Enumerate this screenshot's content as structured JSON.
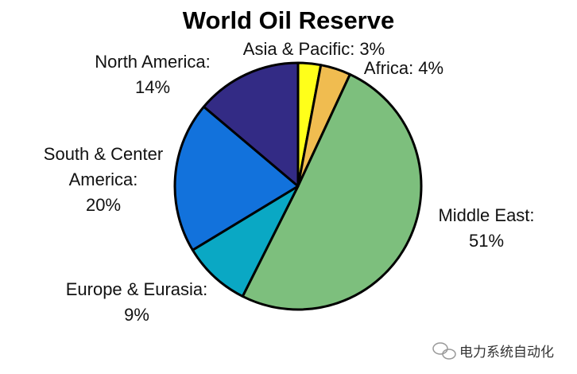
{
  "chart_data": {
    "type": "pie",
    "title": "World Oil Reserve",
    "categories": [
      "Asia & Pacific:",
      "Africa:",
      "Middle East:",
      "Europe & Eurasia:",
      "South & Center America:",
      "North America:"
    ],
    "values": [
      3,
      4,
      51,
      9,
      20,
      14
    ],
    "value_labels": [
      "3%",
      "4%",
      "51%",
      "9%",
      "20%",
      "14%"
    ],
    "colors": [
      "#ffff1a",
      "#f0bc50",
      "#7dbf7d",
      "#0aa8c4",
      "#1272dc",
      "#332b85"
    ]
  },
  "watermark": "电力系统自动化"
}
